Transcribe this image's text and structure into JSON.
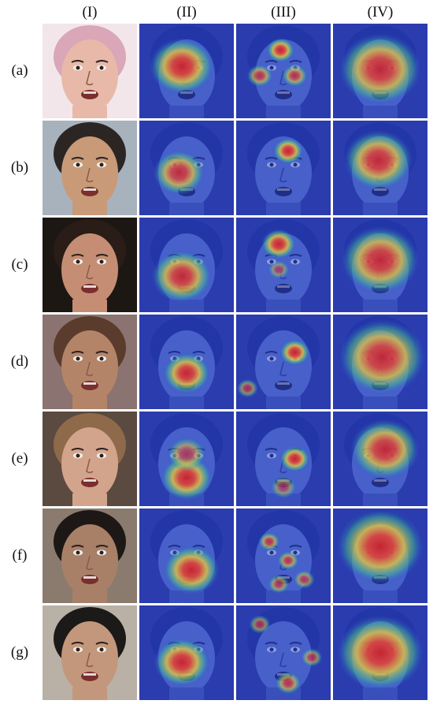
{
  "figure": {
    "column_labels": [
      "(I)",
      "(II)",
      "(III)",
      "(IV)"
    ],
    "rows": [
      {
        "label": "(a)",
        "skin": "#e8b9a8",
        "hair": "#d9a7b7",
        "bg": "#f3e6ea",
        "spots": {
          "II": [
            [
              0.45,
              0.45,
              0.3,
              1.0
            ]
          ],
          "III": [
            [
              0.47,
              0.28,
              0.13,
              1.0
            ],
            [
              0.25,
              0.55,
              0.12,
              0.8
            ],
            [
              0.62,
              0.55,
              0.12,
              0.8
            ]
          ],
          "IV": [
            [
              0.5,
              0.48,
              0.38,
              0.95
            ]
          ]
        }
      },
      {
        "label": "(b)",
        "skin": "#c89a78",
        "hair": "#2b2623",
        "bg": "#a8b2bd",
        "spots": {
          "II": [
            [
              0.42,
              0.55,
              0.24,
              0.9
            ]
          ],
          "III": [
            [
              0.55,
              0.32,
              0.14,
              1.0
            ]
          ],
          "IV": [
            [
              0.48,
              0.42,
              0.32,
              0.95
            ]
          ]
        }
      },
      {
        "label": "(c)",
        "skin": "#c58e74",
        "hair": "#2a1c16",
        "bg": "#1d1714",
        "spots": {
          "II": [
            [
              0.45,
              0.62,
              0.28,
              0.95
            ]
          ],
          "III": [
            [
              0.45,
              0.28,
              0.16,
              1.0
            ],
            [
              0.45,
              0.55,
              0.1,
              0.6
            ]
          ],
          "IV": [
            [
              0.5,
              0.45,
              0.36,
              0.95
            ]
          ]
        }
      },
      {
        "label": "(d)",
        "skin": "#b48468",
        "hair": "#5a3b2c",
        "bg": "#8a7370",
        "spots": {
          "II": [
            [
              0.5,
              0.62,
              0.22,
              1.0
            ]
          ],
          "III": [
            [
              0.62,
              0.4,
              0.14,
              1.0
            ],
            [
              0.12,
              0.78,
              0.1,
              0.7
            ]
          ],
          "IV": [
            [
              0.52,
              0.45,
              0.4,
              0.95
            ]
          ]
        }
      },
      {
        "label": "(e)",
        "skin": "#d3a48c",
        "hair": "#8f6a4a",
        "bg": "#5a4a40",
        "spots": {
          "II": [
            [
              0.5,
              0.7,
              0.24,
              1.0
            ],
            [
              0.5,
              0.45,
              0.18,
              0.7
            ]
          ],
          "III": [
            [
              0.62,
              0.5,
              0.14,
              1.0
            ],
            [
              0.5,
              0.8,
              0.12,
              0.6
            ]
          ],
          "IV": [
            [
              0.55,
              0.4,
              0.32,
              0.95
            ]
          ]
        }
      },
      {
        "label": "(f)",
        "skin": "#a88068",
        "hair": "#1d1816",
        "bg": "#8a7b6e",
        "spots": {
          "II": [
            [
              0.55,
              0.65,
              0.26,
              1.0
            ]
          ],
          "III": [
            [
              0.35,
              0.35,
              0.1,
              0.8
            ],
            [
              0.55,
              0.55,
              0.1,
              0.8
            ],
            [
              0.45,
              0.8,
              0.1,
              0.7
            ],
            [
              0.72,
              0.75,
              0.1,
              0.7
            ]
          ],
          "IV": [
            [
              0.5,
              0.4,
              0.4,
              1.0
            ]
          ]
        }
      },
      {
        "label": "(g)",
        "skin": "#c3977b",
        "hair": "#1c1a18",
        "bg": "#b9b0a6",
        "spots": {
          "II": [
            [
              0.45,
              0.6,
              0.26,
              1.0
            ]
          ],
          "III": [
            [
              0.25,
              0.2,
              0.1,
              0.7
            ],
            [
              0.55,
              0.82,
              0.12,
              0.8
            ],
            [
              0.8,
              0.55,
              0.1,
              0.7
            ]
          ],
          "IV": [
            [
              0.5,
              0.5,
              0.4,
              1.0
            ]
          ]
        }
      }
    ]
  }
}
